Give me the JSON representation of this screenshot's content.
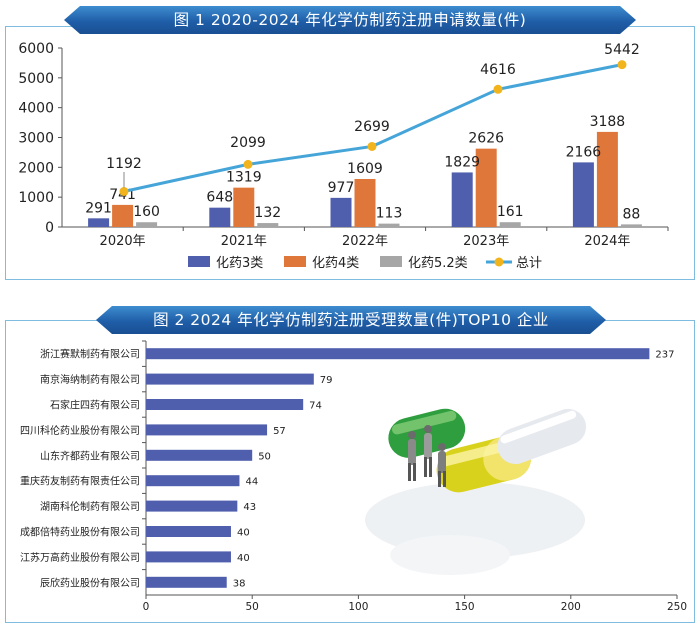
{
  "chart_data": [
    {
      "type": "bar+line",
      "title": "图 1   2020-2024 年化学仿制药注册申请数量(件)",
      "categories": [
        "2020年",
        "2021年",
        "2022年",
        "2023年",
        "2024年"
      ],
      "ylim": [
        0,
        6000
      ],
      "yticks": [
        "0",
        "1000",
        "2000",
        "3000",
        "4000",
        "5000",
        "6000"
      ],
      "grid": false,
      "legend_position": "bottom",
      "series": [
        {
          "name": "化药3类",
          "kind": "bar",
          "color": "#4f5fad",
          "values": [
            291,
            648,
            977,
            1829,
            2166
          ]
        },
        {
          "name": "化药4类",
          "kind": "bar",
          "color": "#e0773a",
          "values": [
            741,
            1319,
            1609,
            2626,
            3188
          ]
        },
        {
          "name": "化药5.2类",
          "kind": "bar",
          "color": "#a6a6a6",
          "values": [
            160,
            132,
            113,
            161,
            88
          ]
        },
        {
          "name": "总计",
          "kind": "line",
          "color": "#46a5d8",
          "marker_color": "#f2b41c",
          "values": [
            1192,
            2099,
            2699,
            4616,
            5442
          ]
        }
      ]
    },
    {
      "type": "bar",
      "orientation": "horizontal",
      "title": "图 2   2024 年化学仿制药注册受理数量(件)TOP10 企业",
      "categories": [
        "浙江赛默制药有限公司",
        "南京海纳制药有限公司",
        "石家庄四药有限公司",
        "四川科伦药业股份有限公司",
        "山东齐都药业有限公司",
        "重庆药友制药有限责任公司",
        "湖南科伦制药有限公司",
        "成都倍特药业股份有限公司",
        "江苏万高药业股份有限公司",
        "辰欣药业股份有限公司"
      ],
      "values": [
        237,
        79,
        74,
        57,
        50,
        44,
        43,
        40,
        40,
        38
      ],
      "xlim": [
        0,
        250
      ],
      "xticks": [
        "0",
        "50",
        "100",
        "150",
        "200",
        "250"
      ],
      "bar_color": "#4f5fad",
      "grid": false
    }
  ],
  "colors": {
    "banner": "#1f5ea8",
    "frame": "#7fbce0",
    "axis": "#333333"
  },
  "decoration": {
    "icon": "capsules-illustration-icon"
  }
}
